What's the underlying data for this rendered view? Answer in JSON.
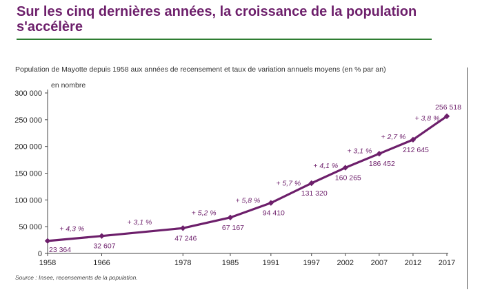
{
  "headline": {
    "title": "Sur les cinq dernières années, la croissance de la population s'accélère"
  },
  "colors": {
    "headline": "#6d1f6b",
    "rule": "#2e7d32",
    "series": "#6d1f6b"
  },
  "chart_data": {
    "type": "line",
    "title": "Population de Mayotte depuis 1958 aux années de recensement et taux de variation annuels moyens (en % par an)",
    "ylabel": "en nombre",
    "xlabel": "",
    "source": "Source : Insee, recensements de la population.",
    "x": [
      1958,
      1966,
      1978,
      1985,
      1991,
      1997,
      2002,
      2007,
      2012,
      2017
    ],
    "x_tick_labels": [
      "1958",
      "1966",
      "1978",
      "1985",
      "1991",
      "1997",
      "2002",
      "2007",
      "2012",
      "2017"
    ],
    "xlim": [
      1958,
      2017
    ],
    "ylim": [
      0,
      300000
    ],
    "y_ticks": [
      0,
      50000,
      100000,
      150000,
      200000,
      250000,
      300000
    ],
    "y_tick_labels": [
      "0",
      "50 000",
      "100 000",
      "150 000",
      "200 000",
      "250 000",
      "300 000"
    ],
    "grid": false,
    "legend": "none",
    "series": [
      {
        "values": [
          23364,
          32607,
          47246,
          67167,
          94410,
          131320,
          160265,
          186452,
          212645,
          256518
        ],
        "value_labels": [
          "23 364",
          "32 607",
          "47 246",
          "67 167",
          "94 410",
          "131 320",
          "160 265",
          "186 452",
          "212 645",
          "256 518"
        ]
      }
    ],
    "rate_labels": [
      "+ 4,3 %",
      "+ 3,1 %",
      "+ 5,2 %",
      "+ 5,8 %",
      "+ 5,7 %",
      "+ 4,1 %",
      "+ 3,1 %",
      "+ 2,7 %",
      "+ 3,8 %"
    ]
  }
}
